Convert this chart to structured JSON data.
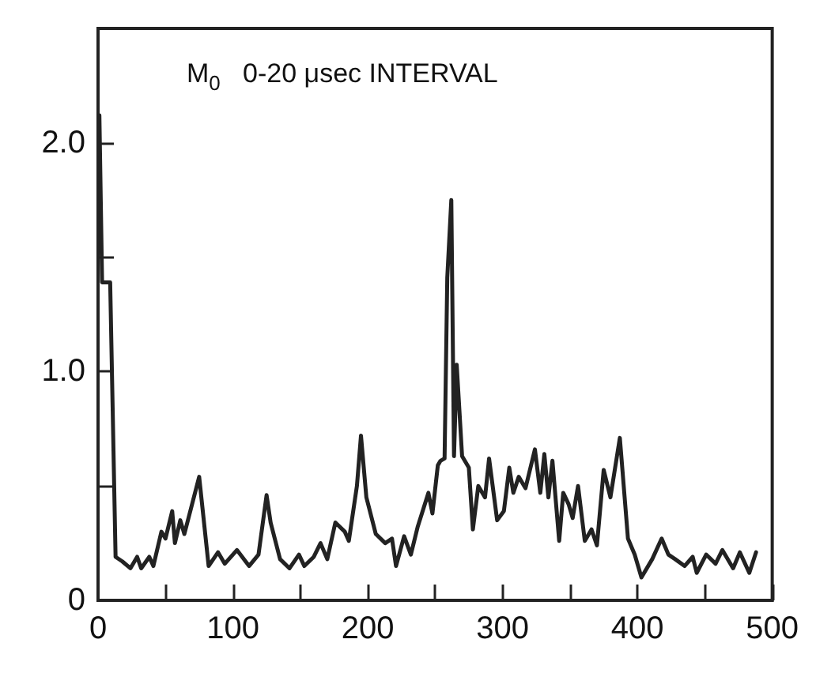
{
  "chart_data": {
    "type": "line",
    "annotations": [
      "M$_{0}$   0-20 μsec INTERVAL"
    ],
    "xlim": [
      0,
      500
    ],
    "ylim": [
      0,
      2.5
    ],
    "xticks": [
      0,
      {
        "value": 50,
        "label": null
      },
      100,
      {
        "value": 150,
        "label": null
      },
      200,
      {
        "value": 250,
        "label": null
      },
      300,
      {
        "value": 350,
        "label": null
      },
      400,
      {
        "value": 450,
        "label": null
      },
      500
    ],
    "yticks": [
      0,
      {
        "value": 0.5,
        "label": null
      },
      {
        "value": 1,
        "label": "1.0"
      },
      {
        "value": 1.5,
        "label": null
      },
      {
        "value": 2,
        "label": "2.0"
      }
    ],
    "grid": false,
    "marker": "none",
    "line_style": "solid",
    "series": [
      {
        "color": "#222222",
        "x": [
          1,
          3,
          9,
          13,
          18,
          24,
          29,
          32,
          38,
          41,
          47,
          50,
          55,
          57,
          61,
          64,
          75,
          82,
          89,
          94,
          103,
          112,
          119,
          125,
          128,
          135,
          142,
          149,
          153,
          160,
          165,
          170,
          176,
          183,
          186,
          192,
          195,
          199,
          206,
          213,
          218,
          221,
          227,
          232,
          237,
          245,
          248,
          252,
          254,
          257,
          259,
          262,
          264,
          266,
          270,
          275,
          278,
          282,
          287,
          290,
          296,
          301,
          305,
          308,
          312,
          317,
          324,
          328,
          331,
          334,
          337,
          342,
          345,
          349,
          352,
          356,
          361,
          366,
          370,
          375,
          380,
          387,
          393,
          398,
          403,
          411,
          418,
          423,
          428,
          435,
          441,
          444,
          451,
          458,
          463,
          471,
          476,
          483,
          488
        ],
        "values": [
          2.12,
          1.39,
          1.39,
          0.19,
          0.17,
          0.14,
          0.19,
          0.14,
          0.19,
          0.15,
          0.3,
          0.27,
          0.39,
          0.25,
          0.35,
          0.29,
          0.54,
          0.15,
          0.21,
          0.16,
          0.22,
          0.15,
          0.2,
          0.46,
          0.34,
          0.18,
          0.14,
          0.2,
          0.15,
          0.19,
          0.25,
          0.18,
          0.34,
          0.3,
          0.26,
          0.5,
          0.72,
          0.45,
          0.29,
          0.25,
          0.27,
          0.15,
          0.28,
          0.2,
          0.32,
          0.47,
          0.38,
          0.59,
          0.61,
          0.62,
          1.41,
          1.75,
          0.63,
          1.03,
          0.63,
          0.58,
          0.31,
          0.5,
          0.45,
          0.62,
          0.35,
          0.39,
          0.58,
          0.47,
          0.54,
          0.49,
          0.66,
          0.47,
          0.64,
          0.45,
          0.61,
          0.26,
          0.47,
          0.42,
          0.36,
          0.5,
          0.26,
          0.31,
          0.24,
          0.57,
          0.45,
          0.71,
          0.27,
          0.2,
          0.1,
          0.18,
          0.27,
          0.2,
          0.18,
          0.15,
          0.19,
          0.12,
          0.2,
          0.16,
          0.22,
          0.14,
          0.21,
          0.12,
          0.21
        ]
      }
    ]
  }
}
